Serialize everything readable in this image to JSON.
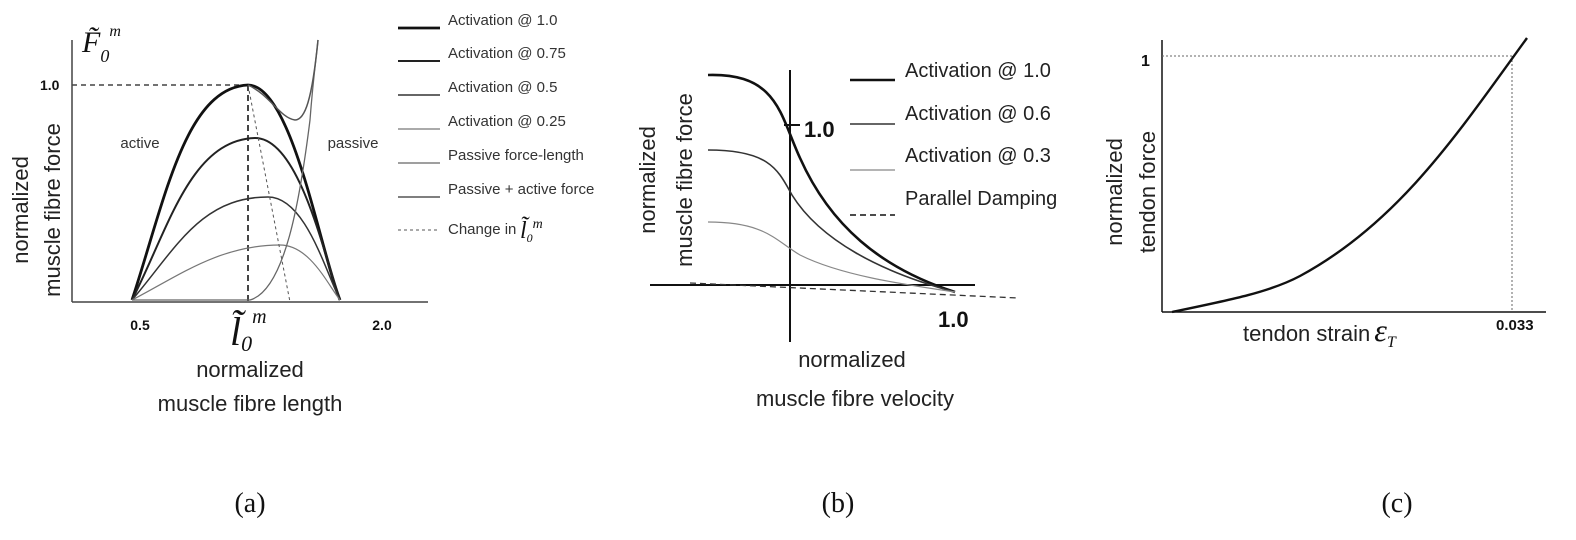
{
  "panels": {
    "a": {
      "caption": "(a)",
      "y_label": [
        "normalized",
        "muscle fibre force"
      ],
      "x_label": [
        "normalized",
        "muscle fibre length"
      ],
      "y_symbol": {
        "base": "F̃",
        "sub": "0",
        "sup": "m"
      },
      "y_tick": "1.0",
      "x_ticks": [
        "0.5",
        "2.0"
      ],
      "x_symbol": {
        "base": "l̃",
        "sub": "0",
        "sup": "m"
      },
      "regions": [
        "active",
        "passive"
      ],
      "legend": [
        "Activation @ 1.0",
        "Activation @ 0.75",
        "Activation @ 0.5",
        "Activation @ 0.25",
        "Passive force-length",
        "Passive + active force",
        "Change in"
      ],
      "legend_symbol": {
        "base": "l̃",
        "sub": "0",
        "sup": "m"
      }
    },
    "b": {
      "caption": "(b)",
      "y_label": [
        "normalized",
        "muscle fibre force"
      ],
      "x_label": [
        "normalized",
        "muscle fibre velocity"
      ],
      "y_tick": "1.0",
      "x_tick": "1.0",
      "legend": [
        "Activation @ 1.0",
        "Activation @ 0.6",
        "Activation @ 0.3",
        "Parallel Damping"
      ]
    },
    "c": {
      "caption": "(c)",
      "y_label": [
        "normalized",
        "tendon force"
      ],
      "x_label": "tendon strain",
      "x_symbol": {
        "base": "ε",
        "sub": "T"
      },
      "y_tick": "1",
      "x_tick": "0.033"
    }
  }
}
